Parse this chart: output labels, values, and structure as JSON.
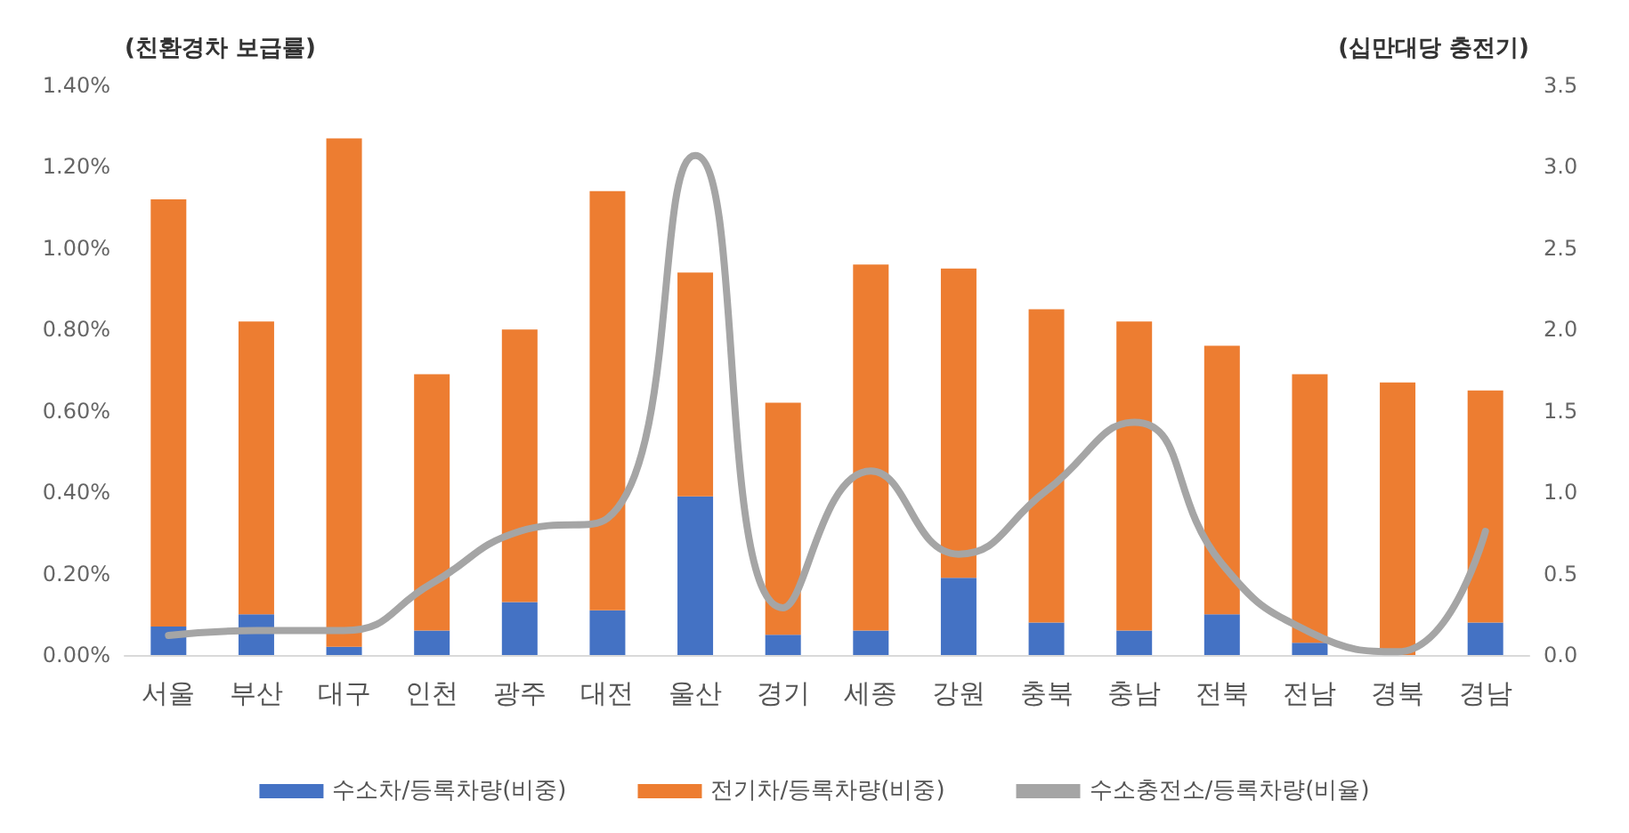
{
  "chart_data": {
    "type": "bar",
    "stacked": true,
    "ylabel": "(친환경차 보급률)",
    "y2label": "(십만대당 충전기)",
    "categories": [
      "서울",
      "부산",
      "대구",
      "인천",
      "광주",
      "대전",
      "울산",
      "경기",
      "세종",
      "강원",
      "충북",
      "충남",
      "전북",
      "전남",
      "경북",
      "경남"
    ],
    "series": [
      {
        "name": "수소차/등록차량(비중)",
        "color": "#4472c4",
        "values": [
          0.07,
          0.1,
          0.02,
          0.06,
          0.13,
          0.11,
          0.39,
          0.05,
          0.06,
          0.19,
          0.08,
          0.06,
          0.1,
          0.03,
          0,
          0.08
        ]
      },
      {
        "name": "전기차/등록차량(비중)",
        "color": "#ed7d31",
        "values": [
          1.05,
          0.72,
          1.25,
          0.63,
          0.67,
          1.03,
          0.55,
          0.57,
          0.9,
          0.76,
          0.77,
          0.76,
          0.66,
          0.66,
          0.67,
          0.57
        ]
      },
      {
        "name": "수소충전소/등록차량(비율)",
        "type": "line",
        "axis": "y2",
        "color": "#a5a5a5",
        "values": [
          0.12,
          0.15,
          0.15,
          0.44,
          0.76,
          0.84,
          3.07,
          0.29,
          1.13,
          0.62,
          1.01,
          1.43,
          0.56,
          0.14,
          0.02,
          0.76
        ]
      }
    ],
    "ylim": [
      0,
      1.4
    ],
    "yticks": [
      {
        "value": 0,
        "label": "0.00%"
      },
      {
        "value": 0.2,
        "label": "0.20%"
      },
      {
        "value": 0.4,
        "label": "0.40%"
      },
      {
        "value": 0.6,
        "label": "0.60%"
      },
      {
        "value": 0.8,
        "label": "0.80%"
      },
      {
        "value": 1.0,
        "label": "1.00%"
      },
      {
        "value": 1.2,
        "label": "1.20%"
      },
      {
        "value": 1.4,
        "label": "1.40%"
      }
    ],
    "y2lim": [
      0,
      3.5
    ],
    "y2ticks": [
      {
        "value": 0,
        "label": "0.0"
      },
      {
        "value": 0.5,
        "label": "0.5"
      },
      {
        "value": 1,
        "label": "1.0"
      },
      {
        "value": 1.5,
        "label": "1.5"
      },
      {
        "value": 2,
        "label": "2.0"
      },
      {
        "value": 2.5,
        "label": "2.5"
      },
      {
        "value": 3,
        "label": "3.0"
      },
      {
        "value": 3.5,
        "label": "3.5"
      }
    ],
    "grid": false,
    "legend": "bottom",
    "marker": "none",
    "line_style": "solid"
  }
}
